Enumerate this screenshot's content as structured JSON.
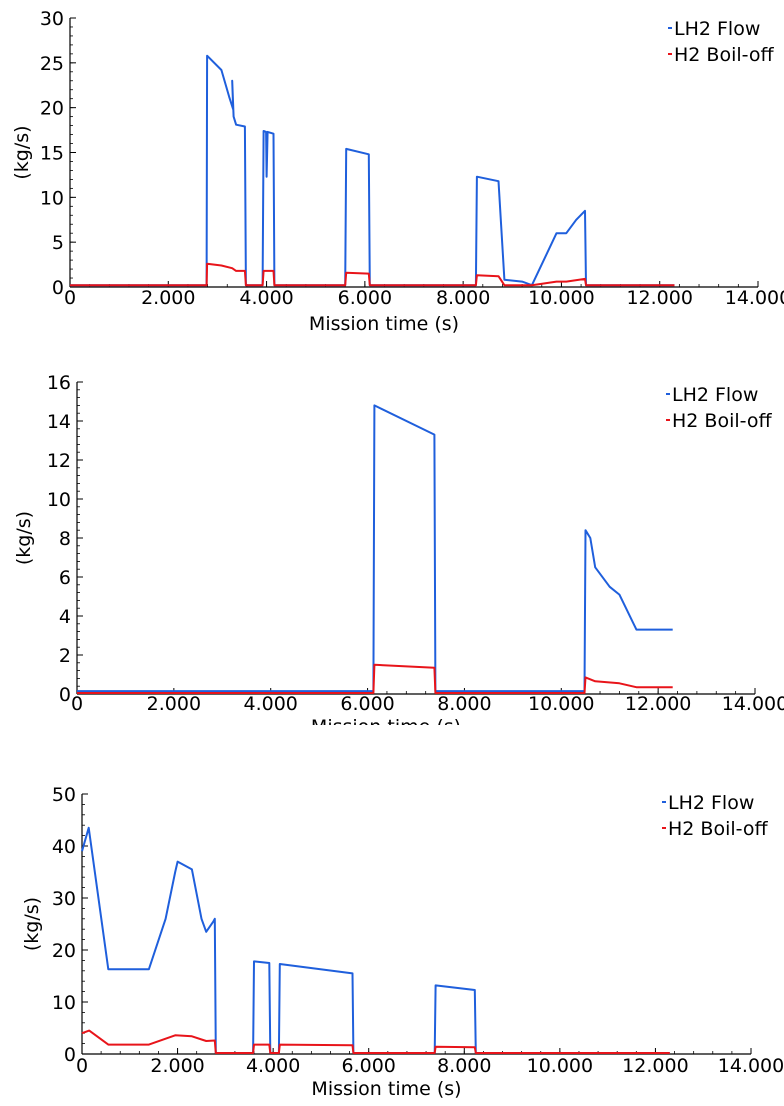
{
  "chart_data": [
    {
      "type": "line",
      "xlabel": "Mission time (s)",
      "ylabel": "(kg/s)",
      "xlim": [
        0,
        14000
      ],
      "ylim": [
        0,
        30
      ],
      "x_ticks": [
        0,
        2000,
        4000,
        6000,
        8000,
        10000,
        12000,
        14000
      ],
      "x_tick_labels": [
        "0",
        "2.000",
        "4.000",
        "6.000",
        "8.000",
        "10.000",
        "12.000",
        "14.000"
      ],
      "y_ticks": [
        0,
        5,
        10,
        15,
        20,
        25,
        30
      ],
      "y_tick_labels": [
        "0",
        "5",
        "10",
        "15",
        "20",
        "25",
        "30"
      ],
      "grid": false,
      "legend_position": "top-right",
      "colors": {
        "LH2 Flow": "#1f5fdc",
        "H2 Boil-off": "#e8141a"
      },
      "series": [
        {
          "name": "LH2 Flow",
          "points": [
            [
              0,
              0.2
            ],
            [
              2780,
              0.2
            ],
            [
              2790,
              25.8
            ],
            [
              3080,
              24.2
            ],
            [
              3240,
              21.2
            ],
            [
              3320,
              19.8
            ],
            [
              3300,
              23.0
            ],
            [
              3330,
              19.0
            ],
            [
              3380,
              18.1
            ],
            [
              3560,
              17.9
            ],
            [
              3580,
              0.2
            ],
            [
              3920,
              0.2
            ],
            [
              3940,
              17.4
            ],
            [
              3990,
              17.3
            ],
            [
              4000,
              12.3
            ],
            [
              4020,
              17.3
            ],
            [
              4140,
              17.1
            ],
            [
              4160,
              0.2
            ],
            [
              5600,
              0.2
            ],
            [
              5620,
              15.4
            ],
            [
              6080,
              14.8
            ],
            [
              6100,
              0.2
            ],
            [
              8260,
              0.2
            ],
            [
              8280,
              12.3
            ],
            [
              8720,
              11.8
            ],
            [
              8840,
              0.8
            ],
            [
              9200,
              0.6
            ],
            [
              9400,
              0.2
            ],
            [
              9900,
              6.0
            ],
            [
              10100,
              6.0
            ],
            [
              10300,
              7.5
            ],
            [
              10480,
              8.5
            ],
            [
              10500,
              0.2
            ],
            [
              12300,
              0.2
            ]
          ]
        },
        {
          "name": "H2 Boil-off",
          "points": [
            [
              0,
              0.2
            ],
            [
              2780,
              0.2
            ],
            [
              2790,
              2.6
            ],
            [
              3080,
              2.4
            ],
            [
              3300,
              2.1
            ],
            [
              3380,
              1.8
            ],
            [
              3560,
              1.8
            ],
            [
              3580,
              0.2
            ],
            [
              3920,
              0.2
            ],
            [
              3940,
              1.8
            ],
            [
              4140,
              1.8
            ],
            [
              4160,
              0.2
            ],
            [
              5600,
              0.2
            ],
            [
              5620,
              1.6
            ],
            [
              6080,
              1.5
            ],
            [
              6100,
              0.2
            ],
            [
              8260,
              0.2
            ],
            [
              8280,
              1.3
            ],
            [
              8720,
              1.2
            ],
            [
              8840,
              0.2
            ],
            [
              9400,
              0.2
            ],
            [
              9900,
              0.6
            ],
            [
              10100,
              0.6
            ],
            [
              10480,
              0.9
            ],
            [
              10500,
              0.2
            ],
            [
              12300,
              0.2
            ]
          ]
        }
      ]
    },
    {
      "type": "line",
      "xlabel": "Mission time (s)",
      "ylabel": "(kg/s)",
      "xlim": [
        0,
        14000
      ],
      "ylim": [
        0,
        16
      ],
      "x_ticks": [
        0,
        2000,
        4000,
        6000,
        8000,
        10000,
        12000,
        14000
      ],
      "x_tick_labels": [
        "0",
        "2.000",
        "4.000",
        "6.000",
        "8.000",
        "10.000",
        "12.000",
        "14.000"
      ],
      "y_ticks": [
        0,
        2,
        4,
        6,
        8,
        10,
        12,
        14,
        16
      ],
      "y_tick_labels": [
        "0",
        "2",
        "4",
        "6",
        "8",
        "10",
        "12",
        "14",
        "16"
      ],
      "grid": false,
      "legend_position": "top-right",
      "colors": {
        "LH2 Flow": "#1f5fdc",
        "H2 Boil-off": "#e8141a"
      },
      "series": [
        {
          "name": "LH2 Flow",
          "points": [
            [
              0,
              0.15
            ],
            [
              6120,
              0.15
            ],
            [
              6140,
              14.8
            ],
            [
              7380,
              13.3
            ],
            [
              7400,
              0.15
            ],
            [
              10480,
              0.15
            ],
            [
              10500,
              8.4
            ],
            [
              10600,
              8.0
            ],
            [
              10700,
              6.5
            ],
            [
              11000,
              5.5
            ],
            [
              11200,
              5.1
            ],
            [
              11550,
              3.3
            ],
            [
              12300,
              3.3
            ]
          ]
        },
        {
          "name": "H2 Boil-off",
          "points": [
            [
              0,
              0.05
            ],
            [
              6120,
              0.05
            ],
            [
              6140,
              1.5
            ],
            [
              7380,
              1.35
            ],
            [
              7400,
              0.05
            ],
            [
              10480,
              0.05
            ],
            [
              10500,
              0.85
            ],
            [
              10700,
              0.65
            ],
            [
              11200,
              0.55
            ],
            [
              11550,
              0.35
            ],
            [
              12300,
              0.35
            ]
          ]
        }
      ]
    },
    {
      "type": "line",
      "xlabel": "Mission time (s)",
      "ylabel": "(kg/s)",
      "xlim": [
        0,
        14000
      ],
      "ylim": [
        0,
        50
      ],
      "x_ticks": [
        0,
        2000,
        4000,
        6000,
        8000,
        10000,
        12000,
        14000
      ],
      "x_tick_labels": [
        "0",
        "2.000",
        "4.000",
        "6.000",
        "8.000",
        "10.000",
        "12.000",
        "14.000"
      ],
      "y_ticks": [
        0,
        10,
        20,
        30,
        40,
        50
      ],
      "y_tick_labels": [
        "0",
        "10",
        "20",
        "30",
        "40",
        "50"
      ],
      "grid": false,
      "legend_position": "top-right",
      "colors": {
        "LH2 Flow": "#1f5fdc",
        "H2 Boil-off": "#e8141a"
      },
      "series": [
        {
          "name": "LH2 Flow",
          "points": [
            [
              0,
              39.0
            ],
            [
              140,
              43.5
            ],
            [
              550,
              16.3
            ],
            [
              1400,
              16.3
            ],
            [
              1750,
              26.0
            ],
            [
              1950,
              35.0
            ],
            [
              2000,
              37.0
            ],
            [
              2300,
              35.5
            ],
            [
              2500,
              26.0
            ],
            [
              2600,
              23.5
            ],
            [
              2750,
              25.5
            ],
            [
              2780,
              26.0
            ],
            [
              2800,
              0.2
            ],
            [
              3580,
              0.2
            ],
            [
              3600,
              17.8
            ],
            [
              3920,
              17.5
            ],
            [
              3940,
              0.2
            ],
            [
              4120,
              0.2
            ],
            [
              4140,
              17.3
            ],
            [
              5660,
              15.5
            ],
            [
              5680,
              0.2
            ],
            [
              7380,
              0.2
            ],
            [
              7400,
              13.2
            ],
            [
              8220,
              12.3
            ],
            [
              8240,
              0.2
            ],
            [
              12300,
              0.2
            ]
          ]
        },
        {
          "name": "H2 Boil-off",
          "points": [
            [
              0,
              4.0
            ],
            [
              150,
              4.5
            ],
            [
              550,
              1.8
            ],
            [
              1400,
              1.8
            ],
            [
              1950,
              3.6
            ],
            [
              2300,
              3.4
            ],
            [
              2600,
              2.5
            ],
            [
              2780,
              2.6
            ],
            [
              2800,
              0.2
            ],
            [
              3580,
              0.2
            ],
            [
              3600,
              1.8
            ],
            [
              3920,
              1.8
            ],
            [
              3940,
              0.2
            ],
            [
              4120,
              0.2
            ],
            [
              4140,
              1.8
            ],
            [
              5660,
              1.7
            ],
            [
              5680,
              0.2
            ],
            [
              7380,
              0.2
            ],
            [
              7400,
              1.4
            ],
            [
              8220,
              1.3
            ],
            [
              8240,
              0.2
            ],
            [
              12300,
              0.2
            ]
          ]
        }
      ]
    }
  ]
}
